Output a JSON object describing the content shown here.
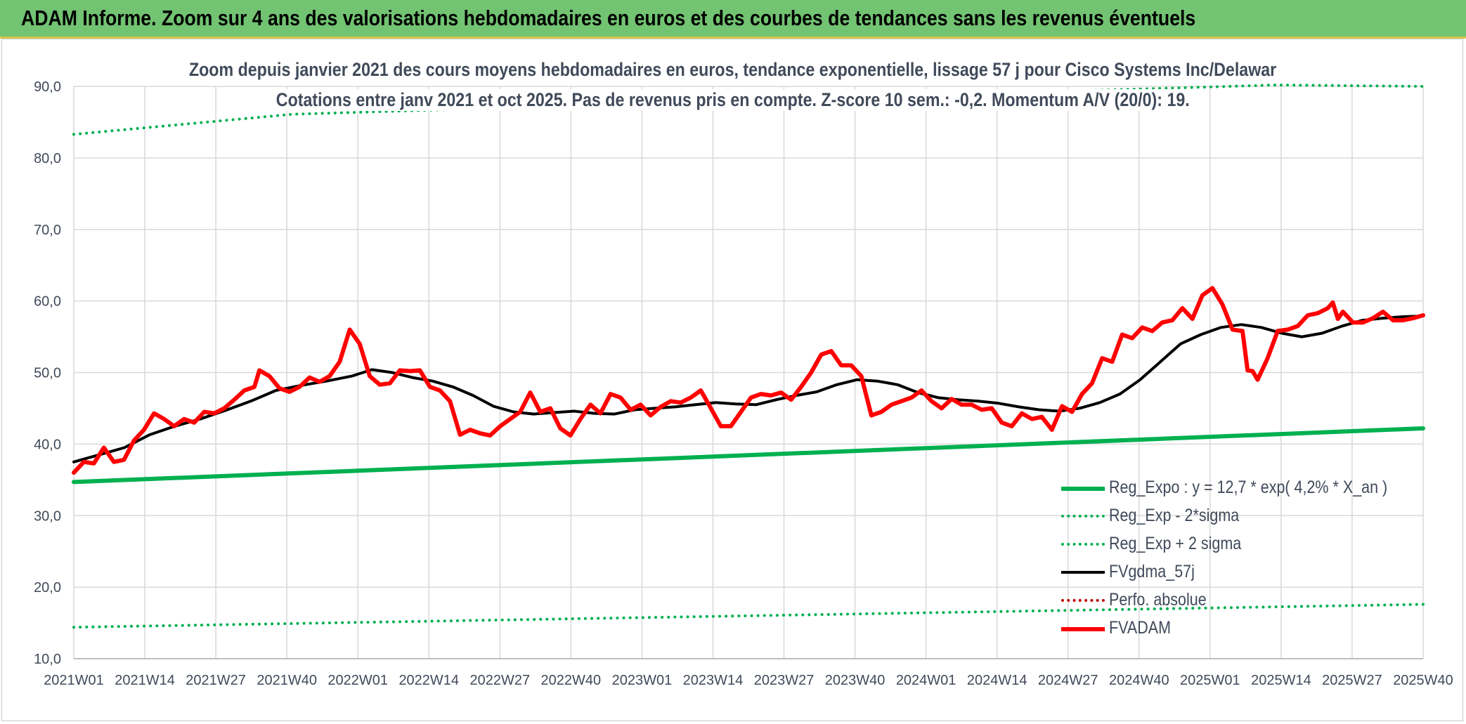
{
  "banner": {
    "title": "ADAM Informe. Zoom sur 4 ans des valorisations hebdomadaires en euros et des courbes de tendances sans les revenus éventuels"
  },
  "chart_data": {
    "type": "line",
    "title": "Zoom depuis janvier 2021 des cours moyens hebdomadaires en euros, tendance exponentielle, lissage 57 j pour Cisco Systems Inc/Delawar",
    "subtitle": "Cotations entre janv 2021 et oct 2025. Pas de revenus pris en compte. Z-score 10 sem.: -0,2. Momentum A/V (20/0): 19.",
    "ylim": [
      10,
      90
    ],
    "yticks": [
      "10,0",
      "20,0",
      "30,0",
      "40,0",
      "50,0",
      "60,0",
      "70,0",
      "80,0",
      "90,0"
    ],
    "x_tick_labels": [
      "2021W01",
      "2021W14",
      "2021W27",
      "2021W40",
      "2022W01",
      "2022W14",
      "2022W27",
      "2022W40",
      "2023W01",
      "2023W14",
      "2023W27",
      "2023W40",
      "2024W01",
      "2024W14",
      "2024W27",
      "2024W40",
      "2025W01",
      "2025W14",
      "2025W27",
      "2025W40"
    ],
    "x_weeks_total": 247,
    "grid": true,
    "legend_position": "bottom-right",
    "series": [
      {
        "name": "Reg_Expo : y = 12,7 * exp( 4,2% *  X_an )",
        "color": "#00b050",
        "style": "solid",
        "width": 6,
        "values": [
          [
            0,
            34.7
          ],
          [
            247,
            42.2
          ]
        ]
      },
      {
        "name": "Reg_Exp - 2*sigma",
        "color": "#00b050",
        "style": "dotted",
        "width": 4,
        "values": [
          [
            0,
            14.4
          ],
          [
            247,
            17.6
          ]
        ]
      },
      {
        "name": "Reg_Exp + 2 sigma",
        "color": "#00b050",
        "style": "dotted",
        "width": 4,
        "values": [
          [
            0,
            83.3
          ],
          [
            40,
            86.1
          ],
          [
            220,
            90.2
          ],
          [
            247,
            90.0
          ]
        ]
      },
      {
        "name": "FVgdma_57j",
        "color": "#000000",
        "style": "solid",
        "width": 4,
        "values": [
          [
            0,
            37.5
          ],
          [
            5,
            38.5
          ],
          [
            10,
            39.5
          ],
          [
            15,
            41.3
          ],
          [
            20,
            42.5
          ],
          [
            25,
            43.5
          ],
          [
            30,
            44.7
          ],
          [
            35,
            46.0
          ],
          [
            40,
            47.5
          ],
          [
            45,
            48.2
          ],
          [
            50,
            48.8
          ],
          [
            55,
            49.5
          ],
          [
            59,
            50.4
          ],
          [
            63,
            50.0
          ],
          [
            67,
            49.3
          ],
          [
            71,
            48.8
          ],
          [
            75,
            48.0
          ],
          [
            79,
            46.8
          ],
          [
            83,
            45.3
          ],
          [
            87,
            44.5
          ],
          [
            91,
            44.2
          ],
          [
            95,
            44.4
          ],
          [
            99,
            44.6
          ],
          [
            103,
            44.3
          ],
          [
            107,
            44.2
          ],
          [
            111,
            44.8
          ],
          [
            115,
            45.0
          ],
          [
            119,
            45.2
          ],
          [
            123,
            45.5
          ],
          [
            127,
            45.8
          ],
          [
            131,
            45.6
          ],
          [
            135,
            45.5
          ],
          [
            139,
            46.2
          ],
          [
            143,
            46.8
          ],
          [
            147,
            47.3
          ],
          [
            151,
            48.3
          ],
          [
            155,
            49.0
          ],
          [
            159,
            48.8
          ],
          [
            163,
            48.3
          ],
          [
            167,
            47.2
          ],
          [
            171,
            46.5
          ],
          [
            175,
            46.2
          ],
          [
            179,
            46.0
          ],
          [
            183,
            45.7
          ],
          [
            187,
            45.2
          ],
          [
            191,
            44.8
          ],
          [
            195,
            44.6
          ],
          [
            199,
            45.0
          ],
          [
            203,
            45.8
          ],
          [
            207,
            47.0
          ],
          [
            211,
            49.0
          ],
          [
            215,
            51.5
          ],
          [
            219,
            54.0
          ],
          [
            223,
            55.3
          ],
          [
            227,
            56.3
          ],
          [
            231,
            56.7
          ],
          [
            235,
            56.3
          ],
          [
            239,
            55.5
          ],
          [
            243,
            55.0
          ],
          [
            247,
            55.5
          ],
          [
            251,
            56.5
          ],
          [
            255,
            57.3
          ],
          [
            259,
            57.6
          ],
          [
            263,
            57.8
          ],
          [
            267,
            57.9
          ]
        ]
      },
      {
        "name": "Perfo. absolue",
        "color": "#c00000",
        "style": "dotted",
        "width": 3,
        "values": []
      },
      {
        "name": "FVADAM",
        "color": "#ff0000",
        "style": "solid",
        "width": 6,
        "values": [
          [
            0,
            36.0
          ],
          [
            2,
            37.5
          ],
          [
            4,
            37.3
          ],
          [
            6,
            39.5
          ],
          [
            8,
            37.5
          ],
          [
            10,
            37.8
          ],
          [
            12,
            40.5
          ],
          [
            14,
            42.0
          ],
          [
            16,
            44.3
          ],
          [
            18,
            43.5
          ],
          [
            20,
            42.5
          ],
          [
            22,
            43.5
          ],
          [
            24,
            43.0
          ],
          [
            26,
            44.5
          ],
          [
            28,
            44.3
          ],
          [
            30,
            45.0
          ],
          [
            32,
            46.2
          ],
          [
            34,
            47.5
          ],
          [
            36,
            48.0
          ],
          [
            37,
            50.3
          ],
          [
            39,
            49.5
          ],
          [
            41,
            47.8
          ],
          [
            43,
            47.3
          ],
          [
            45,
            48.0
          ],
          [
            47,
            49.3
          ],
          [
            49,
            48.7
          ],
          [
            51,
            49.5
          ],
          [
            53,
            51.5
          ],
          [
            55,
            56.0
          ],
          [
            57,
            54.0
          ],
          [
            59,
            49.5
          ],
          [
            61,
            48.3
          ],
          [
            63,
            48.5
          ],
          [
            65,
            50.3
          ],
          [
            67,
            50.2
          ],
          [
            69,
            50.3
          ],
          [
            71,
            48.0
          ],
          [
            73,
            47.5
          ],
          [
            75,
            46.0
          ],
          [
            77,
            41.3
          ],
          [
            79,
            42.0
          ],
          [
            81,
            41.5
          ],
          [
            83,
            41.2
          ],
          [
            85,
            42.5
          ],
          [
            87,
            43.5
          ],
          [
            89,
            44.5
          ],
          [
            91,
            47.2
          ],
          [
            93,
            44.5
          ],
          [
            95,
            45.0
          ],
          [
            97,
            42.2
          ],
          [
            99,
            41.2
          ],
          [
            101,
            43.5
          ],
          [
            103,
            45.5
          ],
          [
            105,
            44.3
          ],
          [
            107,
            47.0
          ],
          [
            109,
            46.5
          ],
          [
            111,
            44.8
          ],
          [
            113,
            45.5
          ],
          [
            115,
            44.0
          ],
          [
            117,
            45.2
          ],
          [
            119,
            46.0
          ],
          [
            121,
            45.8
          ],
          [
            123,
            46.5
          ],
          [
            125,
            47.5
          ],
          [
            127,
            45.0
          ],
          [
            129,
            42.5
          ],
          [
            131,
            42.5
          ],
          [
            133,
            44.5
          ],
          [
            135,
            46.5
          ],
          [
            137,
            47.0
          ],
          [
            139,
            46.8
          ],
          [
            141,
            47.2
          ],
          [
            143,
            46.2
          ],
          [
            145,
            48.0
          ],
          [
            147,
            50.0
          ],
          [
            149,
            52.5
          ],
          [
            151,
            53.0
          ],
          [
            153,
            51.0
          ],
          [
            155,
            51.0
          ],
          [
            157,
            49.5
          ],
          [
            159,
            44.0
          ],
          [
            161,
            44.5
          ],
          [
            163,
            45.5
          ],
          [
            165,
            46.0
          ],
          [
            167,
            46.5
          ],
          [
            169,
            47.5
          ],
          [
            171,
            46.0
          ],
          [
            173,
            45.0
          ],
          [
            175,
            46.3
          ],
          [
            177,
            45.5
          ],
          [
            179,
            45.5
          ],
          [
            181,
            44.8
          ],
          [
            183,
            45.0
          ],
          [
            185,
            43.0
          ],
          [
            187,
            42.5
          ],
          [
            189,
            44.3
          ],
          [
            191,
            43.5
          ],
          [
            193,
            43.8
          ],
          [
            195,
            42.0
          ],
          [
            197,
            45.3
          ],
          [
            199,
            44.5
          ],
          [
            201,
            47.0
          ],
          [
            203,
            48.5
          ],
          [
            205,
            52.0
          ],
          [
            207,
            51.5
          ],
          [
            209,
            55.3
          ],
          [
            211,
            54.8
          ],
          [
            213,
            56.3
          ],
          [
            215,
            55.8
          ],
          [
            217,
            57.0
          ],
          [
            219,
            57.3
          ],
          [
            221,
            59.0
          ],
          [
            223,
            57.5
          ],
          [
            225,
            60.8
          ],
          [
            227,
            61.8
          ],
          [
            229,
            59.5
          ],
          [
            231,
            56.0
          ],
          [
            233,
            55.8
          ],
          [
            234,
            50.3
          ],
          [
            235,
            50.2
          ],
          [
            236,
            49.0
          ],
          [
            238,
            52.0
          ],
          [
            240,
            55.8
          ],
          [
            242,
            56.0
          ],
          [
            244,
            56.5
          ],
          [
            246,
            58.0
          ],
          [
            248,
            58.3
          ],
          [
            250,
            59.0
          ],
          [
            251,
            59.8
          ],
          [
            252,
            57.5
          ],
          [
            253,
            58.5
          ],
          [
            255,
            57.0
          ],
          [
            257,
            57.0
          ],
          [
            259,
            57.6
          ],
          [
            261,
            58.5
          ],
          [
            263,
            57.3
          ],
          [
            265,
            57.3
          ],
          [
            267,
            57.6
          ],
          [
            269,
            58.0
          ]
        ]
      }
    ]
  }
}
